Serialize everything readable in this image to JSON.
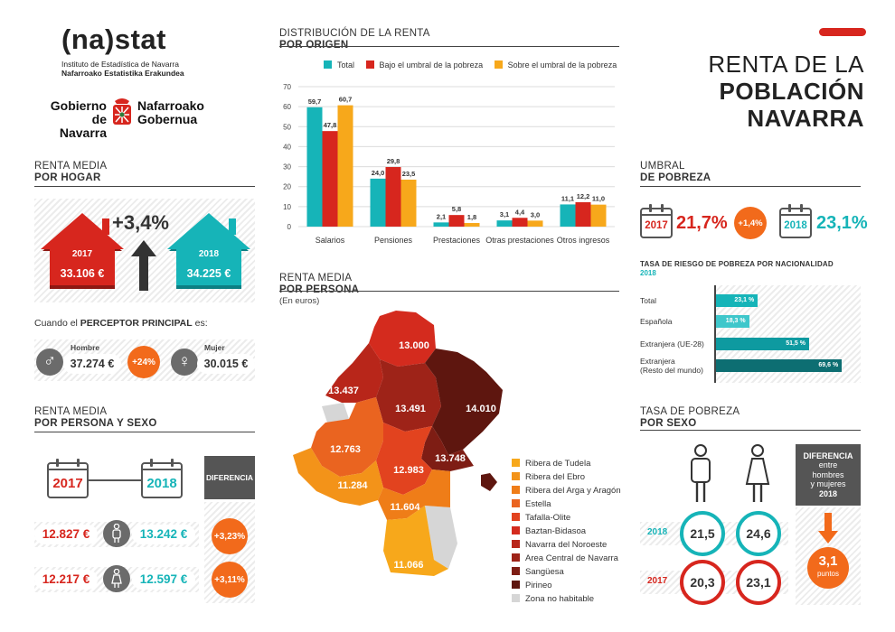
{
  "brand": {
    "nastat_logo": "(na)stat",
    "nastat_line1": "Instituto de Estadística de Navarra",
    "nastat_line2": "Nafarroako Estatistika Erakundea",
    "gob_left1": "Gobierno",
    "gob_left2": "de Navarra",
    "gob_right1": "Nafarroako",
    "gob_right2": "Gobernua"
  },
  "title": {
    "line1": "RENTA DE LA",
    "line2": "POBLACIÓN",
    "line3": "NAVARRA"
  },
  "colors": {
    "red": "#d7261e",
    "teal": "#16b4b8",
    "orange": "#f26a1b",
    "darkred": "#b51f18",
    "grey": "#555555"
  },
  "hogar": {
    "title1": "RENTA MEDIA",
    "title2": "POR HOGAR",
    "change": "+3,4%",
    "y2017": "2017",
    "v2017": "33.106 €",
    "y2018": "2018",
    "v2018": "34.225 €",
    "perceptor_pre": "Cuando el ",
    "perceptor_bold": "PERCEPTOR PRINCIPAL",
    "perceptor_post": " es:",
    "hombre_label": "Hombre",
    "hombre_value": "37.274 €",
    "diff": "+24%",
    "mujer_label": "Mujer",
    "mujer_value": "30.015 €"
  },
  "sexo": {
    "title1": "RENTA MEDIA",
    "title2": "POR PERSONA Y SEXO",
    "y2017": "2017",
    "y2018": "2018",
    "diferencia": "DIFERENCIA",
    "hombre_2017": "12.827 €",
    "hombre_2018": "13.242 €",
    "hombre_diff": "+3,23%",
    "mujer_2017": "12.217 €",
    "mujer_2018": "12.597 €",
    "mujer_diff": "+3,11%"
  },
  "distribucion": {
    "title1": "DISTRIBUCIÓN DE LA RENTA",
    "title2": "POR ORIGEN"
  },
  "persona": {
    "title1": "RENTA MEDIA",
    "title2": "POR PERSONA",
    "subtitle": "(En euros)",
    "map_values": [
      "13.000",
      "13.437",
      "13.491",
      "14.010",
      "12.763",
      "12.983",
      "13.748",
      "11.284",
      "11.604",
      "11.066"
    ],
    "legend": [
      {
        "label": "Ribera de Tudela",
        "color": "#f7a81b"
      },
      {
        "label": "Ribera del Ebro",
        "color": "#f39319"
      },
      {
        "label": "Ribera del Arga y Aragón",
        "color": "#ef7d18"
      },
      {
        "label": "Estella",
        "color": "#ea6420"
      },
      {
        "label": "Tafalla-Olite",
        "color": "#e2431f"
      },
      {
        "label": "Baztan-Bidasoa",
        "color": "#d42b1e"
      },
      {
        "label": "Navarra del Noroeste",
        "color": "#b8261a"
      },
      {
        "label": "Area Central de Navarra",
        "color": "#9e2318"
      },
      {
        "label": "Sangüesa",
        "color": "#7e1d14"
      },
      {
        "label": "Pirineo",
        "color": "#5e160f"
      },
      {
        "label": "Zona no habitable",
        "color": "#d6d6d6"
      }
    ]
  },
  "umbral": {
    "title1": "UMBRAL",
    "title2": "DE POBREZA",
    "y2017": "2017",
    "v2017": "21,7%",
    "change": "+1,4%",
    "y2018": "2018",
    "v2018": "23,1%"
  },
  "riesgo": {
    "title": "TASA DE RIESGO DE POBREZA POR NACIONALIDAD",
    "year": "2018",
    "rows": [
      {
        "label": "Total",
        "label2": "",
        "value": 23.1,
        "text": "23,1 %",
        "color": "#16b4b8"
      },
      {
        "label": "Española",
        "label2": "",
        "value": 18.3,
        "text": "18,3 %",
        "color": "#3fc7cb"
      },
      {
        "label": "Extranjera (UE-28)",
        "label2": "",
        "value": 51.5,
        "text": "51,5 %",
        "color": "#0e9aa0"
      },
      {
        "label": "Extranjera",
        "label2": "(Resto del mundo)",
        "value": 69.6,
        "text": "69,6 %",
        "color": "#0d6e72"
      }
    ]
  },
  "tasa_sexo": {
    "title1": "TASA DE POBREZA",
    "title2": "POR SEXO",
    "diff_l1": "DIFERENCIA",
    "diff_l2": "entre",
    "diff_l3": "hombres",
    "diff_l4": "y mujeres",
    "diff_l5": "2018",
    "y2018": "2018",
    "h2018": "21,5",
    "m2018": "24,6",
    "y2017": "2017",
    "h2017": "20,3",
    "m2017": "23,1",
    "diff_value": "3,1",
    "diff_unit": "puntos"
  },
  "chart_data": {
    "type": "bar",
    "categories": [
      "Salarios",
      "Pensiones",
      "Prestaciones",
      "Otras prestaciones",
      "Otros ingresos"
    ],
    "series": [
      {
        "name": "Total",
        "color": "#16b4b8",
        "values": [
          59.7,
          24.0,
          2.1,
          3.1,
          11.1
        ],
        "labels": [
          "59,7",
          "24,0",
          "2,1",
          "3,1",
          "11,1"
        ]
      },
      {
        "name": "Bajo el umbral de la pobreza",
        "color": "#d7261e",
        "values": [
          47.8,
          29.8,
          5.8,
          4.4,
          12.2
        ],
        "labels": [
          "47,8",
          "29,8",
          "5,8",
          "4,4",
          "12,2"
        ]
      },
      {
        "name": "Sobre el umbral de la pobreza",
        "color": "#f7a81b",
        "values": [
          60.7,
          23.5,
          1.8,
          3.0,
          11.0
        ],
        "labels": [
          "60,7",
          "23,5",
          "1,8",
          "3,0",
          "11,0"
        ]
      }
    ],
    "ylim": [
      0,
      70
    ],
    "yticks": [
      "0",
      "10",
      "20",
      "30",
      "40",
      "50",
      "60",
      "70"
    ],
    "grid": true,
    "legend": "top"
  }
}
